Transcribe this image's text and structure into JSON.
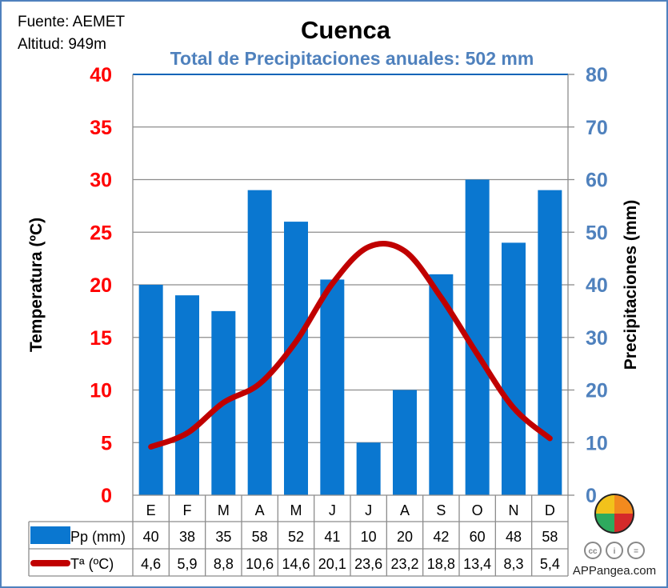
{
  "source": "Fuente: AEMET",
  "altitude": "Altitud: 949m",
  "chart_data": {
    "type": "bar+line",
    "title": "Cuenca",
    "subtitle": "Total de Precipitaciones anuales: 502 mm",
    "categories": [
      "E",
      "F",
      "M",
      "A",
      "M",
      "J",
      "J",
      "A",
      "S",
      "O",
      "N",
      "D"
    ],
    "series": [
      {
        "name": "Pp (mm)",
        "type": "bar",
        "axis": "right",
        "color": "#0a77d0",
        "values": [
          40,
          38,
          35,
          58,
          52,
          41,
          10,
          20,
          42,
          60,
          48,
          58
        ],
        "labels": [
          "40",
          "38",
          "35",
          "58",
          "52",
          "41",
          "10",
          "20",
          "42",
          "60",
          "48",
          "58"
        ]
      },
      {
        "name": "Tª (ºC)",
        "type": "line",
        "axis": "left",
        "color": "#c00000",
        "values": [
          4.6,
          5.9,
          8.8,
          10.6,
          14.6,
          20.1,
          23.6,
          23.2,
          18.8,
          13.4,
          8.3,
          5.4
        ],
        "labels": [
          "4,6",
          "5,9",
          "8,8",
          "10,6",
          "14,6",
          "20,1",
          "23,6",
          "23,2",
          "18,8",
          "13,4",
          "8,3",
          "5,4"
        ]
      }
    ],
    "ylabel_left": "Temperatura (ºC)",
    "ylabel_right": "Precipitaciones (mm)",
    "ylim_left": [
      0,
      40
    ],
    "ylim_right": [
      0,
      80
    ],
    "yticks_left": [
      "0",
      "5",
      "10",
      "15",
      "20",
      "25",
      "30",
      "35",
      "40"
    ],
    "yticks_right": [
      "0",
      "10",
      "20",
      "30",
      "40",
      "50",
      "60",
      "70",
      "80"
    ],
    "grid": true,
    "legend": "data-table-bottom"
  },
  "footer": {
    "cc_badges": [
      "cc",
      "i",
      "="
    ],
    "site": "APPangea.com"
  }
}
